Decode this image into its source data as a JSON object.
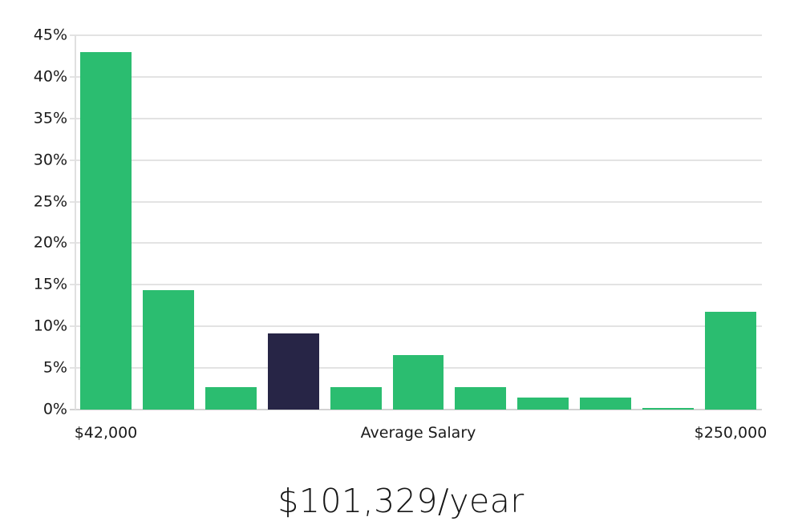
{
  "chart_data": {
    "type": "bar",
    "title": "$101,329/year",
    "values": [
      43,
      14.4,
      2.7,
      9.2,
      2.7,
      6.6,
      2.7,
      1.4,
      1.4,
      0.2,
      11.8
    ],
    "highlight_bar_index": 3,
    "colors": {
      "bar": "#2bbd70",
      "highlight_bar": "#272546",
      "gridline": "#e3e3e3",
      "text": "#1a1a1a"
    },
    "y_ticks": [
      "0%",
      "5%",
      "10%",
      "15%",
      "20%",
      "25%",
      "30%",
      "35%",
      "40%",
      "45%"
    ],
    "ylim": [
      0,
      45
    ],
    "x_axis_labels": {
      "left": "$42,000",
      "center": "Average Salary",
      "right": "$250,000"
    },
    "grid": true,
    "legend": "none"
  }
}
